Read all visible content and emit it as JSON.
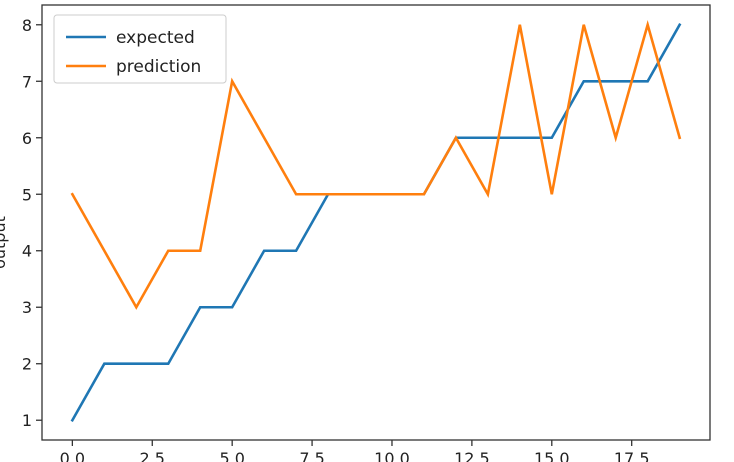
{
  "chart_data": {
    "type": "line",
    "title": "",
    "xlabel": "",
    "ylabel": "output",
    "xlim": [
      -0.95,
      19.95
    ],
    "ylim": [
      0.65,
      8.35
    ],
    "xticks": [
      0,
      2.5,
      5,
      7.5,
      10,
      12.5,
      15,
      17.5
    ],
    "xtick_labels": [
      "0.0",
      "2.5",
      "5.0",
      "7.5",
      "10.0",
      "12.5",
      "15.0",
      "17.5"
    ],
    "yticks": [
      1,
      2,
      3,
      4,
      5,
      6,
      7,
      8
    ],
    "ytick_labels": [
      "1",
      "2",
      "3",
      "4",
      "5",
      "6",
      "7",
      "8"
    ],
    "grid": false,
    "legend_position": "top-left",
    "x": [
      0,
      1,
      2,
      3,
      4,
      5,
      6,
      7,
      8,
      9,
      10,
      11,
      12,
      13,
      14,
      15,
      16,
      17,
      18,
      19
    ],
    "series": [
      {
        "name": "expected",
        "color": "#1f77b4",
        "values": [
          1,
          2,
          2,
          2,
          3,
          3,
          4,
          4,
          5,
          5,
          5,
          5,
          6,
          6,
          6,
          6,
          7,
          7,
          7,
          8
        ]
      },
      {
        "name": "prediction",
        "color": "#ff7f0e",
        "values": [
          5,
          4,
          3,
          4,
          4,
          7,
          6,
          5,
          5,
          5,
          5,
          5,
          6,
          5,
          8,
          5,
          8,
          6,
          8,
          6
        ]
      }
    ]
  }
}
